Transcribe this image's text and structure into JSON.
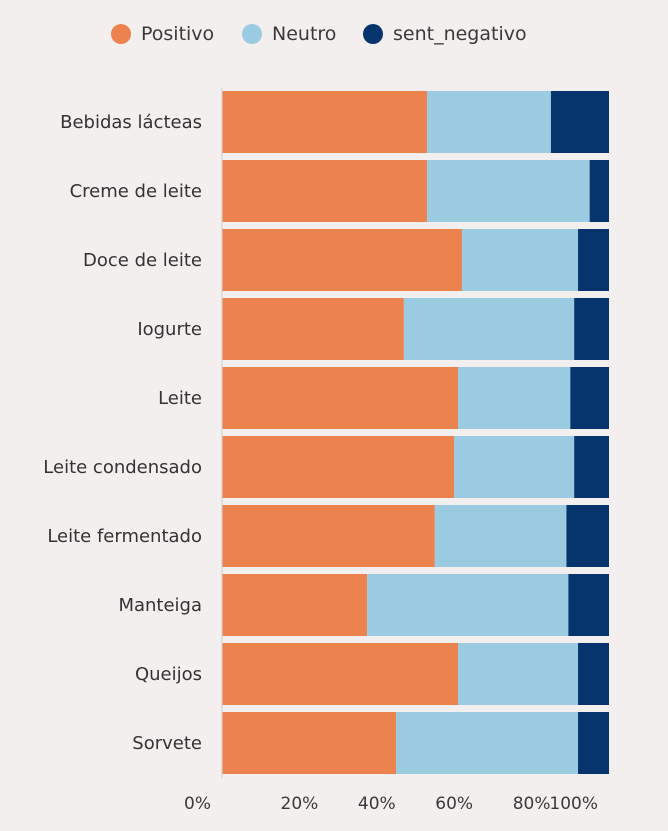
{
  "chart_data": {
    "type": "bar",
    "orientation": "horizontal",
    "stacked": "percent",
    "title": "",
    "xlabel": "",
    "ylabel": "",
    "xlim": [
      0,
      1.0
    ],
    "grid": false,
    "legend_position": "top-center",
    "categories": [
      "Bebidas lácteas",
      "Creme de leite",
      "Doce de leite",
      "Iogurte",
      "Leite",
      "Leite condensado",
      "Leite fermentado",
      "Manteiga",
      "Queijos",
      "Sorvete"
    ],
    "series": [
      {
        "name": "Positivo",
        "color": "#ec834f",
        "values": [
          0.53,
          0.53,
          0.62,
          0.47,
          0.61,
          0.6,
          0.55,
          0.375,
          0.61,
          0.45
        ]
      },
      {
        "name": "Neutro",
        "color": "#9bcbe0",
        "values": [
          0.32,
          0.42,
          0.3,
          0.44,
          0.29,
          0.31,
          0.34,
          0.52,
          0.31,
          0.47
        ]
      },
      {
        "name": "sent_negativo",
        "color": "#06356e",
        "values": [
          0.15,
          0.05,
          0.08,
          0.09,
          0.1,
          0.09,
          0.11,
          0.105,
          0.08,
          0.08
        ]
      }
    ],
    "ticks": [
      {
        "value": 0.0,
        "label": "0%"
      },
      {
        "value": 0.2,
        "label": "20%"
      },
      {
        "value": 0.4,
        "label": "40%"
      },
      {
        "value": 0.6,
        "label": "60%"
      },
      {
        "value": 0.8,
        "label": "80%"
      },
      {
        "value": 1.0,
        "label": "100%"
      }
    ]
  }
}
